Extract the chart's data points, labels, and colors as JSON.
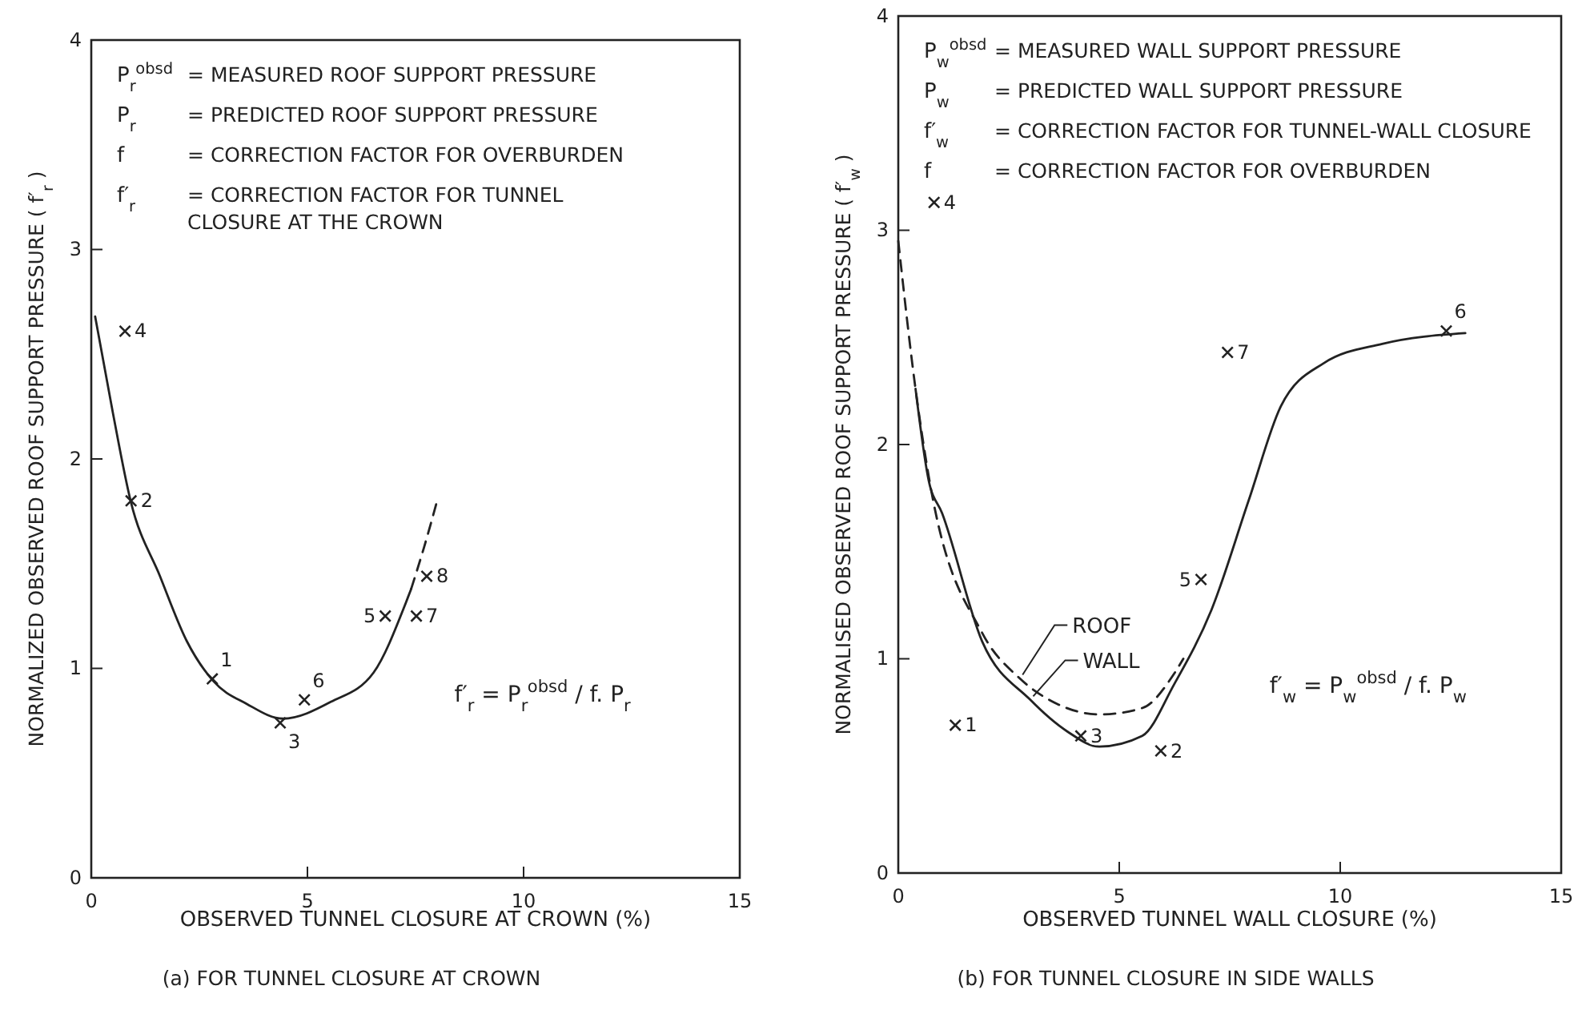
{
  "chart_data": [
    {
      "type": "line",
      "title": "(a) FOR TUNNEL CLOSURE AT CROWN",
      "xlabel": "OBSERVED TUNNEL CLOSURE AT CROWN (%)",
      "ylabel": "NORMALIZED OBSERVED ROOF SUPPORT PRESSURE ( f′$_{r}$ )",
      "xlim": [
        0,
        15
      ],
      "ylim": [
        0,
        4
      ],
      "xticks": [
        0,
        5,
        10,
        15
      ],
      "yticks": [
        0,
        1,
        2,
        3,
        4
      ],
      "grid": false,
      "series": [
        {
          "type": "line",
          "line_style": "solid",
          "color": "#222222",
          "x": [
            0.09,
            0.5,
            0.91,
            1.59,
            2.21,
            2.82,
            3.6,
            4.43,
            5.54,
            6.53,
            7.27,
            7.4
          ],
          "values": [
            2.68,
            2.22,
            1.8,
            1.44,
            1.13,
            0.94,
            0.83,
            0.76,
            0.84,
            0.98,
            1.31,
            1.38
          ]
        },
        {
          "type": "line",
          "line_style": "dashed",
          "color": "#222222",
          "x": [
            7.4,
            7.7,
            8.0
          ],
          "values": [
            1.38,
            1.58,
            1.8
          ]
        },
        {
          "type": "scatter",
          "marker": "cross",
          "color": "#222222",
          "x": [
            2.8,
            0.92,
            4.37,
            0.78,
            6.8,
            4.93,
            7.52,
            7.76
          ],
          "values": [
            0.95,
            1.8,
            0.74,
            2.61,
            1.25,
            0.85,
            1.25,
            1.44
          ]
        }
      ],
      "annotations": [
        "P$_{r}$$^{obsd}$ = MEASURED ROOF SUPPORT PRESSURE",
        "P$_{r}$ = PREDICTED ROOF SUPPORT PRESSURE",
        "f = CORRECTION FACTOR FOR OVERBURDEN",
        "f′$_{r}$ = CORRECTION FACTOR FOR TUNNEL\nCLOSURE AT THE CROWN",
        "f′$_{r}$ = P$_{r}$$^{obsd}$ / f. P$_{r}$",
        {
          "text": "1",
          "x": 2.8,
          "y": 0.95
        },
        {
          "text": "2",
          "x": 0.92,
          "y": 1.8
        },
        {
          "text": "3",
          "x": 4.37,
          "y": 0.74
        },
        {
          "text": "4",
          "x": 0.78,
          "y": 2.61
        },
        {
          "text": "5",
          "x": 6.8,
          "y": 1.25
        },
        {
          "text": "6",
          "x": 4.93,
          "y": 0.85
        },
        {
          "text": "7",
          "x": 7.52,
          "y": 1.25
        },
        {
          "text": "8",
          "x": 7.76,
          "y": 1.44
        }
      ]
    },
    {
      "type": "line",
      "title": "(b) FOR TUNNEL CLOSURE IN SIDE WALLS",
      "xlabel": "OBSERVED TUNNEL WALL CLOSURE (%)",
      "ylabel": "NORMALISED OBSERVED ROOF SUPPORT PRESSURE ( f′$_{w}$ )",
      "xlim": [
        0,
        15
      ],
      "ylim": [
        0,
        4
      ],
      "xticks": [
        0,
        5,
        10,
        15
      ],
      "yticks": [
        0,
        1,
        2,
        3,
        4
      ],
      "grid": false,
      "legend": "bottom left",
      "series": [
        {
          "name": "ROOF",
          "type": "line",
          "line_style": "dashed",
          "color": "#222222",
          "x": [
            0,
            0.39,
            0.69,
            1.9,
            2.74,
            3.59,
            4.55,
            5.52,
            6.24,
            6.45
          ],
          "values": [
            2.95,
            2.26,
            1.85,
            1.12,
            0.91,
            0.79,
            0.74,
            0.77,
            0.93,
            1.0
          ]
        },
        {
          "name": "WALL",
          "type": "line",
          "line_style": "solid",
          "color": "#222222",
          "x": [
            0.39,
            0.69,
            0.99,
            1.9,
            2.98,
            3.83,
            4.55,
            5.52,
            6.24,
            7.09,
            7.93,
            8.66,
            9.63,
            10.95,
            12.83
          ],
          "values": [
            2.26,
            1.83,
            1.68,
            1.08,
            0.81,
            0.66,
            0.59,
            0.64,
            0.88,
            1.23,
            1.74,
            2.18,
            2.38,
            2.47,
            2.52
          ]
        },
        {
          "type": "scatter",
          "marker": "cross",
          "color": "#222222",
          "x": [
            1.29,
            5.94,
            4.13,
            0.81,
            6.85,
            12.4,
            7.45
          ],
          "values": [
            0.69,
            0.57,
            0.64,
            3.13,
            1.37,
            2.53,
            2.43
          ]
        }
      ],
      "annotations": [
        "P$_{w}$$^{obsd}$ = MEASURED WALL SUPPORT PRESSURE",
        "P$_{w}$ = PREDICTED WALL SUPPORT PRESSURE",
        "f′$_{w}$ = CORRECTION FACTOR FOR TUNNEL-WALL CLOSURE",
        "f = CORRECTION FACTOR FOR OVERBURDEN",
        "f′$_{w}$ = P$_{w}$$^{obsd}$ / f. P$_{w}$",
        {
          "text": "1",
          "x": 1.29,
          "y": 0.69
        },
        {
          "text": "2",
          "x": 5.94,
          "y": 0.57
        },
        {
          "text": "3",
          "x": 4.13,
          "y": 0.64
        },
        {
          "text": "4",
          "x": 0.81,
          "y": 3.13
        },
        {
          "text": "5",
          "x": 6.85,
          "y": 1.37
        },
        {
          "text": "6",
          "x": 12.4,
          "y": 2.53
        },
        {
          "text": "7",
          "x": 7.45,
          "y": 2.43
        }
      ]
    }
  ]
}
